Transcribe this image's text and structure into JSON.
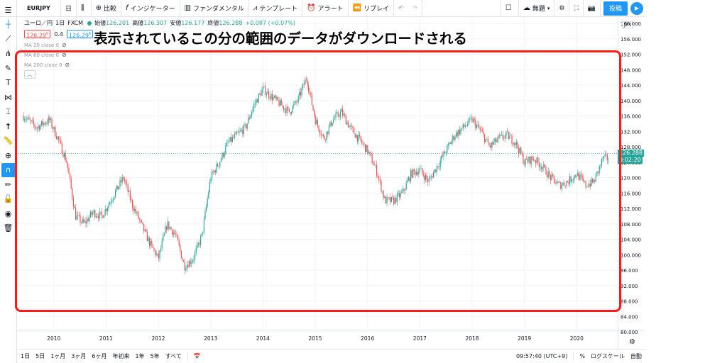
{
  "toolbar": {
    "symbol": "EURJPY",
    "interval": "日",
    "compare": "比較",
    "indicators": "インジケーター",
    "fundamentals": "ファンダメンタル",
    "templates": "テンプレート",
    "alert": "アラート",
    "replay": "リプレイ",
    "layout": "無題",
    "publish": "投稿"
  },
  "legend": {
    "title": "ユーロ／円",
    "interval": "1日",
    "exchange": "FXCM",
    "open_label": "始値",
    "open": "126.201",
    "high_label": "高値",
    "high": "126.307",
    "low_label": "安値",
    "low": "126.177",
    "close_label": "終値",
    "close": "126.288",
    "change": "+0.087 (+0.07%)",
    "sell": "126.29",
    "spread": "0.4",
    "buy": "126.29",
    "ma": [
      "MA 20 close 0",
      "MA 60 close 0",
      "MA 200 close 0"
    ]
  },
  "caption": "表示されているこの分の範囲のデータがダウンロードされる",
  "price_scale": {
    "currency": "JPY",
    "ticks": [
      "160.000",
      "156.000",
      "152.000",
      "148.000",
      "144.000",
      "140.000",
      "136.000",
      "132.000",
      "128.000",
      "124.000",
      "120.000",
      "116.000",
      "112.000",
      "108.000",
      "104.000",
      "100.000",
      "96.000",
      "92.000",
      "88.000",
      "84.000",
      "80.000"
    ],
    "last_price": "126.288",
    "countdown": "0:02:20"
  },
  "time_axis": {
    "years": [
      "2010",
      "2011",
      "2012",
      "2013",
      "2014",
      "2015",
      "2016",
      "2017",
      "2018",
      "2019",
      "2020"
    ]
  },
  "bottom": {
    "ranges": [
      "1日",
      "5日",
      "1ヶ月",
      "3ヶ月",
      "6ヶ月",
      "年初来",
      "1年",
      "5年",
      "すべて"
    ],
    "time": "09:57:40 (UTC+9)",
    "percent": "%",
    "log": "ログスケール",
    "auto": "自動"
  },
  "chart_data": {
    "type": "candlestick",
    "ylim": [
      80,
      160
    ],
    "x": [
      "2009-06",
      "2009-09",
      "2009-12",
      "2010-02",
      "2010-04",
      "2010-06",
      "2010-08",
      "2010-10",
      "2010-12",
      "2011-03",
      "2011-05",
      "2011-07",
      "2011-09",
      "2011-11",
      "2012-01",
      "2012-03",
      "2012-05",
      "2012-07",
      "2012-09",
      "2012-11",
      "2013-01",
      "2013-03",
      "2013-05",
      "2013-07",
      "2013-09",
      "2013-11",
      "2014-01",
      "2014-03",
      "2014-05",
      "2014-07",
      "2014-09",
      "2014-11",
      "2015-01",
      "2015-03",
      "2015-05",
      "2015-07",
      "2015-09",
      "2015-11",
      "2016-01",
      "2016-03",
      "2016-05",
      "2016-07",
      "2016-09",
      "2016-11",
      "2017-01",
      "2017-03",
      "2017-05",
      "2017-07",
      "2017-09",
      "2017-11",
      "2018-01",
      "2018-03",
      "2018-05",
      "2018-07",
      "2018-09",
      "2018-11",
      "2019-01",
      "2019-03",
      "2019-05",
      "2019-07",
      "2019-09",
      "2019-11",
      "2020-01",
      "2020-03",
      "2020-05",
      "2020-07"
    ],
    "values": [
      136,
      133,
      135,
      130,
      124,
      110,
      108,
      111,
      110,
      116,
      120,
      113,
      108,
      103,
      99,
      108,
      105,
      97,
      99,
      105,
      120,
      124,
      129,
      131,
      133,
      139,
      143,
      141,
      139,
      137,
      140,
      146,
      135,
      130,
      135,
      137,
      133,
      130,
      127,
      122,
      114,
      114,
      116,
      121,
      122,
      119,
      123,
      127,
      131,
      133,
      135,
      132,
      128,
      130,
      131,
      129,
      124,
      125,
      123,
      120,
      118,
      119,
      121,
      118,
      119,
      125
    ]
  }
}
